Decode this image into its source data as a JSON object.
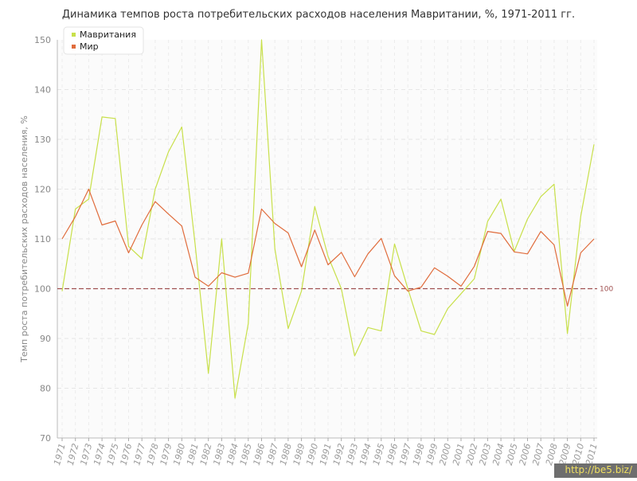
{
  "watermark": "http://be5.biz/",
  "chart_data": {
    "type": "line",
    "title": "Динамика темпов роста потребительских расходов населения Мавритании, %, 1971-2011 гг.",
    "xlabel": "",
    "ylabel": "Темп роста потребительских расходов населения, %",
    "ylim": [
      70,
      150
    ],
    "yticks": [
      70,
      80,
      90,
      100,
      110,
      120,
      130,
      140,
      150
    ],
    "grid": true,
    "legend_position": "top-left",
    "categories": [
      "1971",
      "1972",
      "1973",
      "1974",
      "1975",
      "1976",
      "1977",
      "1978",
      "1979",
      "1980",
      "1981",
      "1982",
      "1983",
      "1984",
      "1985",
      "1986",
      "1987",
      "1988",
      "1989",
      "1990",
      "1991",
      "1992",
      "1993",
      "1994",
      "1995",
      "1996",
      "1997",
      "1998",
      "1999",
      "2000",
      "2001",
      "2002",
      "2003",
      "2004",
      "2005",
      "2006",
      "2007",
      "2008",
      "2009",
      "2010",
      "2011"
    ],
    "series": [
      {
        "name": "Мавритания",
        "color": "#c8e04a",
        "values": [
          99.5,
          116,
          118,
          134.5,
          134.2,
          108.5,
          106,
          120,
          127.5,
          132.5,
          109,
          83,
          110,
          78,
          93,
          150,
          108,
          92,
          99.5,
          116.5,
          106.5,
          100,
          86.5,
          92.2,
          91.5,
          109,
          100,
          91.5,
          90.8,
          96,
          99,
          102,
          113.5,
          118,
          107.5,
          114,
          118.5,
          121,
          91,
          114.5,
          129
        ]
      },
      {
        "name": "Мир",
        "color": "#e06c3c",
        "values": [
          110,
          114.5,
          120,
          112.8,
          113.6,
          107.2,
          112.8,
          117.5,
          115,
          112.6,
          102.3,
          100.5,
          103.2,
          102.3,
          103.1,
          116,
          113.1,
          111.2,
          104.4,
          111.8,
          104.8,
          107.3,
          102.4,
          107,
          110.1,
          102.6,
          99.5,
          100.3,
          104.2,
          102.5,
          100.5,
          104.5,
          111.5,
          111.1,
          107.4,
          107,
          111.5,
          108.8,
          96.5,
          107.2,
          110
        ]
      }
    ],
    "reference_line": {
      "value": 100,
      "label": "100",
      "color": "#a05050"
    }
  }
}
